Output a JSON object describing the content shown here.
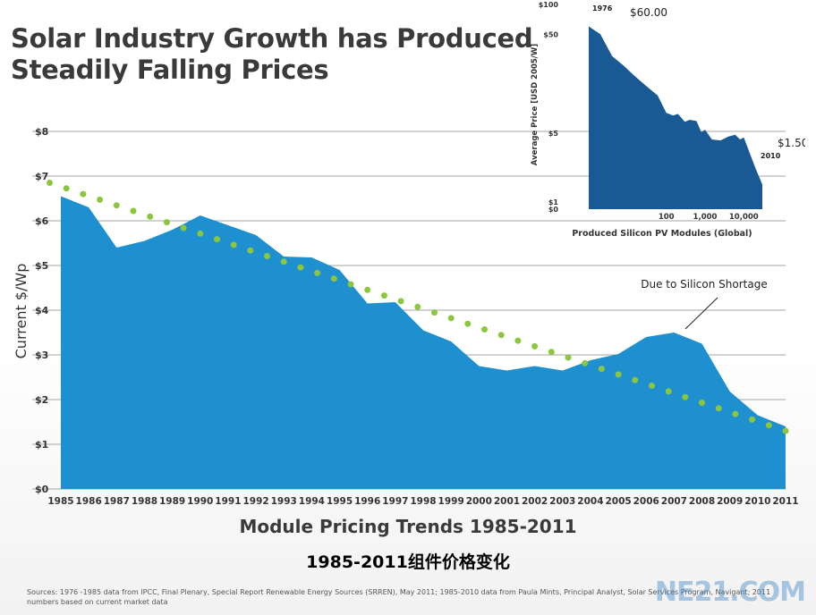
{
  "title": {
    "line1": "Solar Industry Growth has Produced",
    "line2": "Steadily Falling Prices"
  },
  "captions": {
    "main": "Module Pricing Trends 1985-2011",
    "chinese": "1985-2011组件价格变化"
  },
  "sources_text": "Sources: 1976 -1985 data from IPCC, Final Plenary, Special Report Renewable Energy Sources (SRREN), May 2011; 1985-2010 data from Paula Mints, Principal Analyst, Solar Services Program, Navigant; 2011 numbers based on current market data",
  "watermark": "NE21.COM",
  "colors": {
    "area_fill": "#1e8fcf",
    "trend_dots": "#8cc63f",
    "inset_fill": "#1a5a94",
    "grid": "#888888",
    "title": "#3a3a3a"
  },
  "chart_data": [
    {
      "type": "area",
      "title": "Module Pricing Trends 1985-2011",
      "xlabel": "",
      "ylabel": "Current $/Wp",
      "ylim": [
        0,
        8
      ],
      "grid": true,
      "y_tick_labels": [
        "$0",
        "$1",
        "$2",
        "$3",
        "$4",
        "$5",
        "$6",
        "$7",
        "$8"
      ],
      "x": [
        "1985",
        "1986",
        "1987",
        "1988",
        "1989",
        "1990",
        "1991",
        "1992",
        "1993",
        "1994",
        "1995",
        "1996",
        "1997",
        "1998",
        "1999",
        "2000",
        "2001",
        "2002",
        "2003",
        "2004",
        "2005",
        "2006",
        "2007",
        "2008",
        "2009",
        "2010",
        "2011"
      ],
      "series": [
        {
          "values": [
            6.55,
            6.3,
            5.4,
            5.55,
            5.8,
            6.12,
            5.9,
            5.68,
            5.2,
            5.18,
            4.9,
            4.15,
            4.18,
            3.55,
            3.3,
            2.75,
            2.65,
            2.75,
            2.65,
            2.88,
            3.02,
            3.4,
            3.5,
            3.25,
            2.18,
            1.65,
            1.4
          ]
        },
        {
          "style": "dotted-trend",
          "values_by_x": [
            [
              1984.6,
              6.85
            ],
            [
              2011.0,
              1.3
            ]
          ]
        }
      ],
      "annotations": [
        "Due to Silicon Shortage"
      ]
    },
    {
      "type": "area",
      "title": "",
      "xlabel": "Produced Silicon PV Modules (Global)",
      "ylabel": "Average Price [USD 2005/W]",
      "x_scale": "log",
      "y_scale": "log",
      "x_tick_labels": [
        "100",
        "1,000",
        "10,000"
      ],
      "y_tick_labels": [
        "$100",
        "$50",
        "$5",
        "$1",
        "$0"
      ],
      "annotations": [
        "1976",
        "$60.00",
        "$1.50",
        "2010"
      ],
      "series": [
        {
          "points": [
            [
              1,
              60
            ],
            [
              2,
              50
            ],
            [
              4,
              30
            ],
            [
              8,
              24
            ],
            [
              15,
              19
            ],
            [
              30,
              15
            ],
            [
              60,
              12
            ],
            [
              100,
              8
            ],
            [
              150,
              7.5
            ],
            [
              200,
              7.8
            ],
            [
              300,
              6.5
            ],
            [
              400,
              6.8
            ],
            [
              600,
              6.6
            ],
            [
              800,
              5.1
            ],
            [
              1000,
              5.4
            ],
            [
              1500,
              4.3
            ],
            [
              2500,
              4.2
            ],
            [
              4000,
              4.6
            ],
            [
              6000,
              4.8
            ],
            [
              8000,
              4.3
            ],
            [
              10000,
              4.5
            ],
            [
              20000,
              2.2
            ],
            [
              30000,
              1.5
            ]
          ]
        }
      ]
    }
  ]
}
